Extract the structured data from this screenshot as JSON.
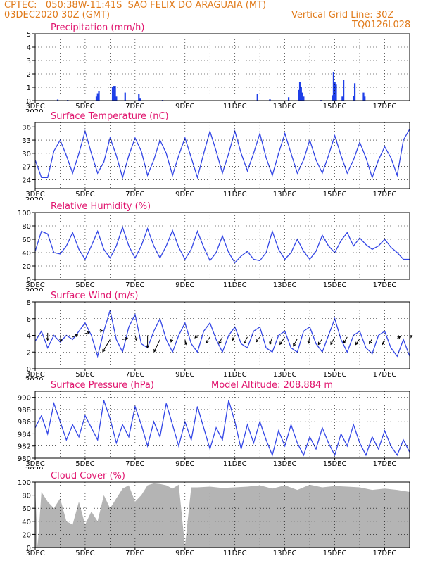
{
  "header": {
    "line1": "CPTEC:   050:38W-11:41S  SAO FELIX DO ARAGUAIA (MT)",
    "line2_left": "03DEC2020 30Z (GMT)",
    "line2_right": "Vertical Grid Line: 30Z",
    "line3_right": "TQ0126L028"
  },
  "colors": {
    "header": "#e07a1a",
    "title": "#e0156e",
    "line": "#3346e6",
    "bar": "#1f3fe8",
    "cloud": "#b4b4b4",
    "wind_arrow": "#000000"
  },
  "x_ticks": [
    "3DEC",
    "5DEC",
    "7DEC",
    "9DEC",
    "11DEC",
    "13DEC",
    "15DEC",
    "17DEC"
  ],
  "year_label": "2020",
  "chart_data": [
    {
      "type": "bar",
      "title": "Precipitation (mm/h)",
      "x_unit": "days since 3DEC 00Z",
      "ylim": [
        0,
        5
      ],
      "yticks": [
        0,
        1,
        2,
        3,
        4,
        5
      ],
      "x": [
        0.9,
        1.3,
        2.45,
        2.5,
        2.55,
        3.1,
        3.15,
        3.2,
        3.25,
        3.6,
        4.15,
        4.2,
        5.1,
        8.9,
        9.4,
        10.15,
        10.55,
        10.6,
        10.65,
        10.7,
        10.75,
        11.45,
        11.9,
        11.95,
        12.0,
        12.05,
        12.3,
        12.35,
        12.75,
        12.8,
        13.15,
        13.2
      ],
      "values": [
        0.08,
        0.05,
        0.3,
        0.55,
        0.7,
        1.05,
        1.1,
        1.1,
        0.3,
        0.6,
        0.5,
        0.2,
        0.05,
        0.5,
        0.1,
        0.25,
        0.8,
        1.4,
        1.0,
        0.6,
        0.3,
        0.05,
        0.4,
        2.1,
        1.4,
        1.2,
        0.3,
        1.55,
        0.35,
        1.3,
        0.6,
        0.3
      ],
      "vgrid": "30Z"
    },
    {
      "type": "line",
      "title": "Surface Temperature (nC)",
      "ylim": [
        22,
        37
      ],
      "yticks": [
        24,
        27,
        30,
        33,
        36
      ],
      "x": [
        0,
        0.25,
        0.5,
        0.75,
        1,
        1.25,
        1.5,
        1.75,
        2,
        2.25,
        2.5,
        2.75,
        3,
        3.25,
        3.5,
        3.75,
        4,
        4.25,
        4.5,
        4.75,
        5,
        5.25,
        5.5,
        5.75,
        6,
        6.25,
        6.5,
        6.75,
        7,
        7.25,
        7.5,
        7.75,
        8,
        8.25,
        8.5,
        8.75,
        9,
        9.25,
        9.5,
        9.75,
        10,
        10.25,
        10.5,
        10.75,
        11,
        11.25,
        11.5,
        11.75,
        12,
        12.25,
        12.5,
        12.75,
        13,
        13.25,
        13.5,
        13.75,
        14,
        14.25,
        14.5,
        14.75,
        15
      ],
      "values": [
        28.5,
        24.5,
        24.5,
        30.5,
        33.0,
        29.5,
        25.5,
        30.0,
        35.0,
        30.0,
        25.5,
        28.0,
        33.5,
        29.5,
        24.5,
        29.5,
        33.5,
        30.5,
        25.0,
        28.5,
        33.0,
        30.0,
        25.0,
        29.5,
        33.5,
        29.0,
        24.5,
        30.0,
        35.0,
        30.5,
        25.5,
        30.0,
        35.0,
        30.0,
        26.0,
        30.0,
        34.5,
        29.0,
        25.0,
        30.0,
        34.5,
        30.0,
        25.5,
        28.5,
        33.0,
        28.5,
        25.5,
        29.5,
        34.0,
        29.5,
        25.5,
        28.5,
        32.5,
        29.0,
        24.5,
        28.5,
        31.5,
        29.0,
        25.0,
        33.0,
        35.5
      ]
    },
    {
      "type": "line",
      "title": "Relative Humidity (%)",
      "ylim": [
        0,
        100
      ],
      "yticks": [
        0,
        20,
        40,
        60,
        80,
        100
      ],
      "x": [
        0,
        0.25,
        0.5,
        0.75,
        1,
        1.25,
        1.5,
        1.75,
        2,
        2.25,
        2.5,
        2.75,
        3,
        3.25,
        3.5,
        3.75,
        4,
        4.25,
        4.5,
        4.75,
        5,
        5.25,
        5.5,
        5.75,
        6,
        6.25,
        6.5,
        6.75,
        7,
        7.25,
        7.5,
        7.75,
        8,
        8.25,
        8.5,
        8.75,
        9,
        9.25,
        9.5,
        9.75,
        10,
        10.25,
        10.5,
        10.75,
        11,
        11.25,
        11.5,
        11.75,
        12,
        12.25,
        12.5,
        12.75,
        13,
        13.25,
        13.5,
        13.75,
        14,
        14.25,
        14.5,
        14.75,
        15
      ],
      "values": [
        42,
        72,
        68,
        40,
        38,
        50,
        70,
        45,
        30,
        50,
        72,
        45,
        32,
        50,
        78,
        50,
        32,
        50,
        76,
        50,
        32,
        50,
        73,
        48,
        30,
        45,
        72,
        48,
        28,
        40,
        65,
        40,
        25,
        35,
        42,
        30,
        28,
        40,
        72,
        45,
        30,
        40,
        60,
        42,
        30,
        42,
        66,
        50,
        40,
        58,
        70,
        50,
        62,
        52,
        45,
        50,
        60,
        48,
        40,
        30,
        30
      ]
    },
    {
      "type": "line",
      "title": "Surface Wind (m/s)",
      "ylim": [
        0,
        8
      ],
      "yticks": [
        0,
        2,
        4,
        6,
        8
      ],
      "x": [
        0,
        0.25,
        0.5,
        0.75,
        1,
        1.25,
        1.5,
        1.75,
        2,
        2.25,
        2.5,
        2.75,
        3,
        3.25,
        3.5,
        3.75,
        4,
        4.25,
        4.5,
        4.75,
        5,
        5.25,
        5.5,
        5.75,
        6,
        6.25,
        6.5,
        6.75,
        7,
        7.25,
        7.5,
        7.75,
        8,
        8.25,
        8.5,
        8.75,
        9,
        9.25,
        9.5,
        9.75,
        10,
        10.25,
        10.5,
        10.75,
        11,
        11.25,
        11.5,
        11.75,
        12,
        12.25,
        12.5,
        12.75,
        13,
        13.25,
        13.5,
        13.75,
        14,
        14.25,
        14.5,
        14.75,
        15
      ],
      "values": [
        3.3,
        4.5,
        2.5,
        4.0,
        3.2,
        4.0,
        3.5,
        4.5,
        5.5,
        4.0,
        1.5,
        4.5,
        7.0,
        3.5,
        2.0,
        5.0,
        6.5,
        3.0,
        2.5,
        4.5,
        6.0,
        3.5,
        2.0,
        4.0,
        5.5,
        3.0,
        2.0,
        4.5,
        5.5,
        3.5,
        2.0,
        4.0,
        5.0,
        3.0,
        2.5,
        4.5,
        5.0,
        2.5,
        2.0,
        4.0,
        4.5,
        2.5,
        2.0,
        4.5,
        5.0,
        3.0,
        2.0,
        4.0,
        6.0,
        3.5,
        2.0,
        4.0,
        4.5,
        2.5,
        1.8,
        4.0,
        4.5,
        2.5,
        1.5,
        3.5,
        1.5
      ],
      "arrows_x": [
        0.5,
        1.0,
        1.5,
        2.0,
        2.5,
        3.0,
        3.5,
        4.0,
        4.5,
        5.0,
        5.5,
        6.0,
        6.5,
        7.0,
        7.5,
        8.0,
        8.5,
        9.0,
        9.5,
        10.0,
        10.5,
        11.0,
        11.5,
        12.0,
        12.5,
        13.0,
        13.5,
        14.0,
        14.5,
        15.0
      ],
      "arrows_y": [
        4.3,
        4.0,
        3.8,
        4.2,
        4.5,
        3.5,
        3.5,
        4.0,
        4.0,
        3.5,
        3.8,
        3.5,
        4.0,
        3.8,
        3.8,
        4.0,
        3.8,
        3.8,
        3.8,
        3.8,
        3.6,
        3.8,
        3.6,
        3.8,
        3.8,
        3.6,
        3.6,
        3.6,
        3.6,
        3.8
      ],
      "arrows_u": [
        0.0,
        0.2,
        1.0,
        0.9,
        1.0,
        -1.5,
        1.0,
        0.3,
        0.0,
        -1.2,
        -0.3,
        0.2,
        -0.5,
        -0.8,
        -0.7,
        -0.5,
        -0.7,
        -0.8,
        -0.5,
        -1.0,
        -0.8,
        -0.3,
        -0.8,
        -0.8,
        -0.7,
        -0.8,
        -0.6,
        -0.5,
        0.6,
        0.5
      ],
      "arrows_v": [
        -1.5,
        -1.2,
        0.5,
        0.3,
        0.1,
        -2.5,
        0.3,
        -1.0,
        -2.5,
        -2.5,
        -1.0,
        -1.0,
        -0.5,
        -1.2,
        -1.3,
        -1.0,
        -1.3,
        -1.0,
        -1.5,
        -1.5,
        -1.5,
        -1.3,
        -1.2,
        -1.5,
        -1.2,
        -1.2,
        -1.0,
        -1.2,
        0.4,
        0.3
      ]
    },
    {
      "type": "line",
      "title": "Surface Pressure (hPa)",
      "subtitle": "Model Altitude: 208.884 m",
      "ylim": [
        980,
        991
      ],
      "yticks": [
        980,
        982,
        984,
        986,
        988,
        990
      ],
      "x": [
        0,
        0.25,
        0.5,
        0.75,
        1,
        1.25,
        1.5,
        1.75,
        2,
        2.25,
        2.5,
        2.75,
        3,
        3.25,
        3.5,
        3.75,
        4,
        4.25,
        4.5,
        4.75,
        5,
        5.25,
        5.5,
        5.75,
        6,
        6.25,
        6.5,
        6.75,
        7,
        7.25,
        7.5,
        7.75,
        8,
        8.25,
        8.5,
        8.75,
        9,
        9.25,
        9.5,
        9.75,
        10,
        10.25,
        10.5,
        10.75,
        11,
        11.25,
        11.5,
        11.75,
        12,
        12.25,
        12.5,
        12.75,
        13,
        13.25,
        13.5,
        13.75,
        14,
        14.25,
        14.5,
        14.75,
        15
      ],
      "values": [
        985.0,
        987.0,
        984.0,
        989.0,
        986.0,
        983.0,
        985.5,
        983.5,
        987.0,
        985.0,
        983.0,
        989.5,
        986.5,
        982.5,
        985.5,
        983.5,
        988.5,
        985.5,
        982.0,
        986.0,
        983.5,
        989.0,
        985.5,
        982.0,
        986.0,
        983.0,
        988.5,
        985.0,
        981.5,
        985.0,
        983.0,
        989.5,
        986.0,
        981.5,
        985.5,
        982.5,
        986.0,
        983.0,
        980.5,
        984.5,
        982.0,
        985.5,
        982.5,
        980.5,
        983.5,
        981.5,
        985.0,
        982.5,
        980.5,
        984.0,
        982.0,
        985.5,
        982.5,
        980.5,
        983.5,
        981.5,
        984.5,
        982.0,
        980.5,
        983.0,
        981.0
      ]
    },
    {
      "type": "area",
      "title": "Cloud Cover (%)",
      "ylim": [
        0,
        100
      ],
      "yticks": [
        0,
        20,
        40,
        60,
        80,
        100
      ],
      "x": [
        0,
        0.1,
        0.25,
        0.5,
        0.75,
        1,
        1.25,
        1.5,
        1.75,
        2,
        2.25,
        2.5,
        2.75,
        3,
        3.25,
        3.5,
        3.75,
        4,
        4.25,
        4.5,
        4.75,
        5,
        5.25,
        5.5,
        5.75,
        6,
        6.25,
        6.5,
        7,
        7.5,
        8,
        8.5,
        9,
        9.5,
        10,
        10.5,
        11,
        11.5,
        12,
        12.5,
        13,
        13.5,
        14,
        14.5,
        15
      ],
      "values": [
        90,
        2,
        85,
        70,
        60,
        75,
        40,
        35,
        70,
        35,
        55,
        40,
        80,
        60,
        75,
        90,
        95,
        70,
        80,
        95,
        98,
        97,
        95,
        90,
        96,
        2,
        92,
        92,
        93,
        91,
        92,
        93,
        95,
        90,
        95,
        88,
        96,
        92,
        94,
        93,
        92,
        88,
        90,
        88,
        85
      ]
    }
  ]
}
